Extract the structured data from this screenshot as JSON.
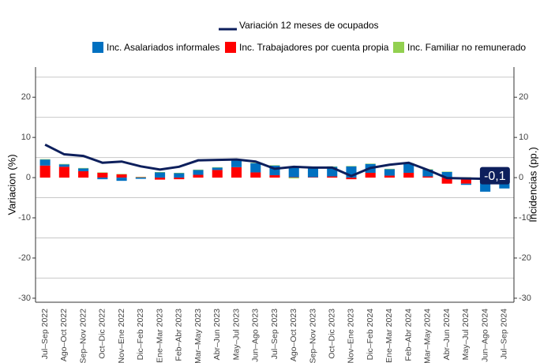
{
  "chart_data": {
    "type": "bar-line",
    "categories": [
      "Jul–Sep 2022",
      "Ago–Oct 2022",
      "Sep–Nov 2022",
      "Oct–Dic 2022",
      "Nov–Ene 2022",
      "Dic–Feb 2023",
      "Ene–Mar 2023",
      "Feb–Abr 2023",
      "Mar–May 2023",
      "Abr–Jun 2023",
      "May–Jul 2023",
      "Jun–Ago 2023",
      "Jul–Sep 2023",
      "Ago–Oct 2023",
      "Sep–Nov 2023",
      "Oct–Dic 2023",
      "Nov–Ene 2023",
      "Dic–Feb 2024",
      "Ene–Mar 2024",
      "Feb–Abr 2024",
      "Mar–May 2024",
      "Abr–Jun 2024",
      "May–Jul 2024",
      "Jun–Ago 2024",
      "Jul–Sep 2024"
    ],
    "series": [
      {
        "name": "Inc. Asalariados informales",
        "color": "#0070c0",
        "axis": "y2",
        "values": [
          1.5,
          0.6,
          0.7,
          -0.4,
          -0.8,
          -0.3,
          1.3,
          1.1,
          1.2,
          0.6,
          1.8,
          2.3,
          2.4,
          2.7,
          2.3,
          2.4,
          2.8,
          2.2,
          1.6,
          2.3,
          1.7,
          1.4,
          -0.3,
          -3.2,
          -2.2
        ]
      },
      {
        "name": "Inc. Trabajadores por cuenta propia",
        "color": "#ff0000",
        "axis": "y2",
        "values": [
          3.0,
          2.7,
          1.6,
          1.2,
          0.8,
          0.1,
          -0.5,
          -0.4,
          0.7,
          1.9,
          2.6,
          1.3,
          0.6,
          0.1,
          0.1,
          0.3,
          -0.4,
          1.2,
          0.5,
          1.2,
          0.3,
          -1.5,
          -1.5,
          -0.3,
          -0.5
        ]
      },
      {
        "name": "Inc. Familiar no remunerado",
        "color": "#92d050",
        "axis": "y2",
        "values": [
          0.1,
          0.1,
          0.1,
          0.1,
          0.1,
          0.1,
          0.1,
          0.1,
          0.1,
          0.1,
          0.1,
          0.1,
          0.1,
          -0.2,
          0.1,
          0.1,
          0.1,
          0.1,
          0.1,
          0.1,
          0.1,
          0.1,
          0.1,
          0.1,
          0.1
        ]
      },
      {
        "name": "Variación 12 meses de ocupados",
        "color": "#0d1f5c",
        "type": "line",
        "values": [
          8.2,
          5.8,
          5.4,
          3.7,
          4.0,
          2.8,
          2.0,
          2.7,
          4.3,
          4.4,
          4.5,
          4.0,
          2.2,
          2.7,
          2.5,
          2.5,
          0.4,
          2.4,
          3.2,
          3.7,
          1.9,
          -0.1,
          -0.2,
          -0.3,
          -0.1
        ],
        "value_labels": [
          null,
          null,
          null,
          null,
          null,
          null,
          null,
          null,
          null,
          null,
          null,
          null,
          null,
          null,
          null,
          null,
          null,
          null,
          null,
          null,
          null,
          null,
          null,
          null,
          "-0,1"
        ]
      }
    ],
    "ylabel": "Variacion (%)",
    "y2label": "Incidencias (pp.)",
    "ylim": [
      -31,
      27.5
    ],
    "yticks": [
      -30,
      -20,
      -10,
      0,
      10,
      20
    ],
    "y2lim": [
      -31,
      27.5
    ],
    "y2ticks": [
      -30,
      -20,
      -10,
      0,
      10,
      20
    ],
    "ygrid": [
      25,
      15,
      5,
      -5,
      -15,
      -25
    ]
  }
}
